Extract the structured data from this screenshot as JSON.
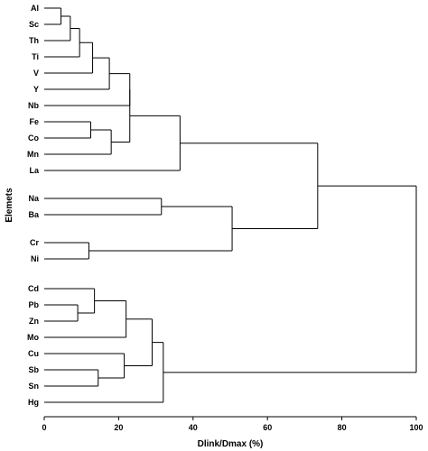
{
  "chart_data": {
    "type": "dendrogram",
    "orientation": "horizontal",
    "xlabel": "Dlink/Dmax (%)",
    "ylabel": "Elemets",
    "xlim": [
      0,
      100
    ],
    "xticks": [
      0,
      20,
      40,
      60,
      80,
      100
    ],
    "leaves": [
      "Al",
      "Sc",
      "Th",
      "Ti",
      "V",
      "Y",
      "Nb",
      "Fe",
      "Co",
      "Mn",
      "La",
      "Na",
      "Ba",
      "Cr",
      "Ni",
      "Cd",
      "Pb",
      "Zn",
      "Mo",
      "Cu",
      "Sb",
      "Sn",
      "Hg"
    ],
    "merges": [
      {
        "a": "L:Al",
        "b": "L:Sc",
        "height": 4.5
      },
      {
        "a": "N:0",
        "b": "L:Th",
        "height": 7
      },
      {
        "a": "N:1",
        "b": "L:Ti",
        "height": 9.5
      },
      {
        "a": "N:2",
        "b": "L:V",
        "height": 13
      },
      {
        "a": "N:3",
        "b": "L:Y",
        "height": 17.5
      },
      {
        "a": "L:Fe",
        "b": "L:Co",
        "height": 12.5
      },
      {
        "a": "N:5",
        "b": "L:Mn",
        "height": 18
      },
      {
        "a": "N:4",
        "b": "L:Nb",
        "height": 23
      },
      {
        "a": "N:7",
        "b": "N:6",
        "height": 23
      },
      {
        "a": "N:8",
        "b": "L:La",
        "height": 36.5
      },
      {
        "a": "L:Na",
        "b": "L:Ba",
        "height": 31.5
      },
      {
        "a": "L:Cr",
        "b": "L:Ni",
        "height": 12
      },
      {
        "a": "N:10",
        "b": "N:11",
        "height": 50.5
      },
      {
        "a": "N:9",
        "b": "N:12",
        "height": 73.5
      },
      {
        "a": "L:Pb",
        "b": "L:Zn",
        "height": 9
      },
      {
        "a": "L:Cd",
        "b": "N:14",
        "height": 13.5
      },
      {
        "a": "N:15",
        "b": "L:Mo",
        "height": 22
      },
      {
        "a": "L:Sb",
        "b": "L:Sn",
        "height": 14.5
      },
      {
        "a": "L:Cu",
        "b": "N:17",
        "height": 21.5
      },
      {
        "a": "N:16",
        "b": "N:18",
        "height": 29
      },
      {
        "a": "N:19",
        "b": "L:Hg",
        "height": 32
      },
      {
        "a": "N:13",
        "b": "N:20",
        "height": 100
      }
    ]
  }
}
